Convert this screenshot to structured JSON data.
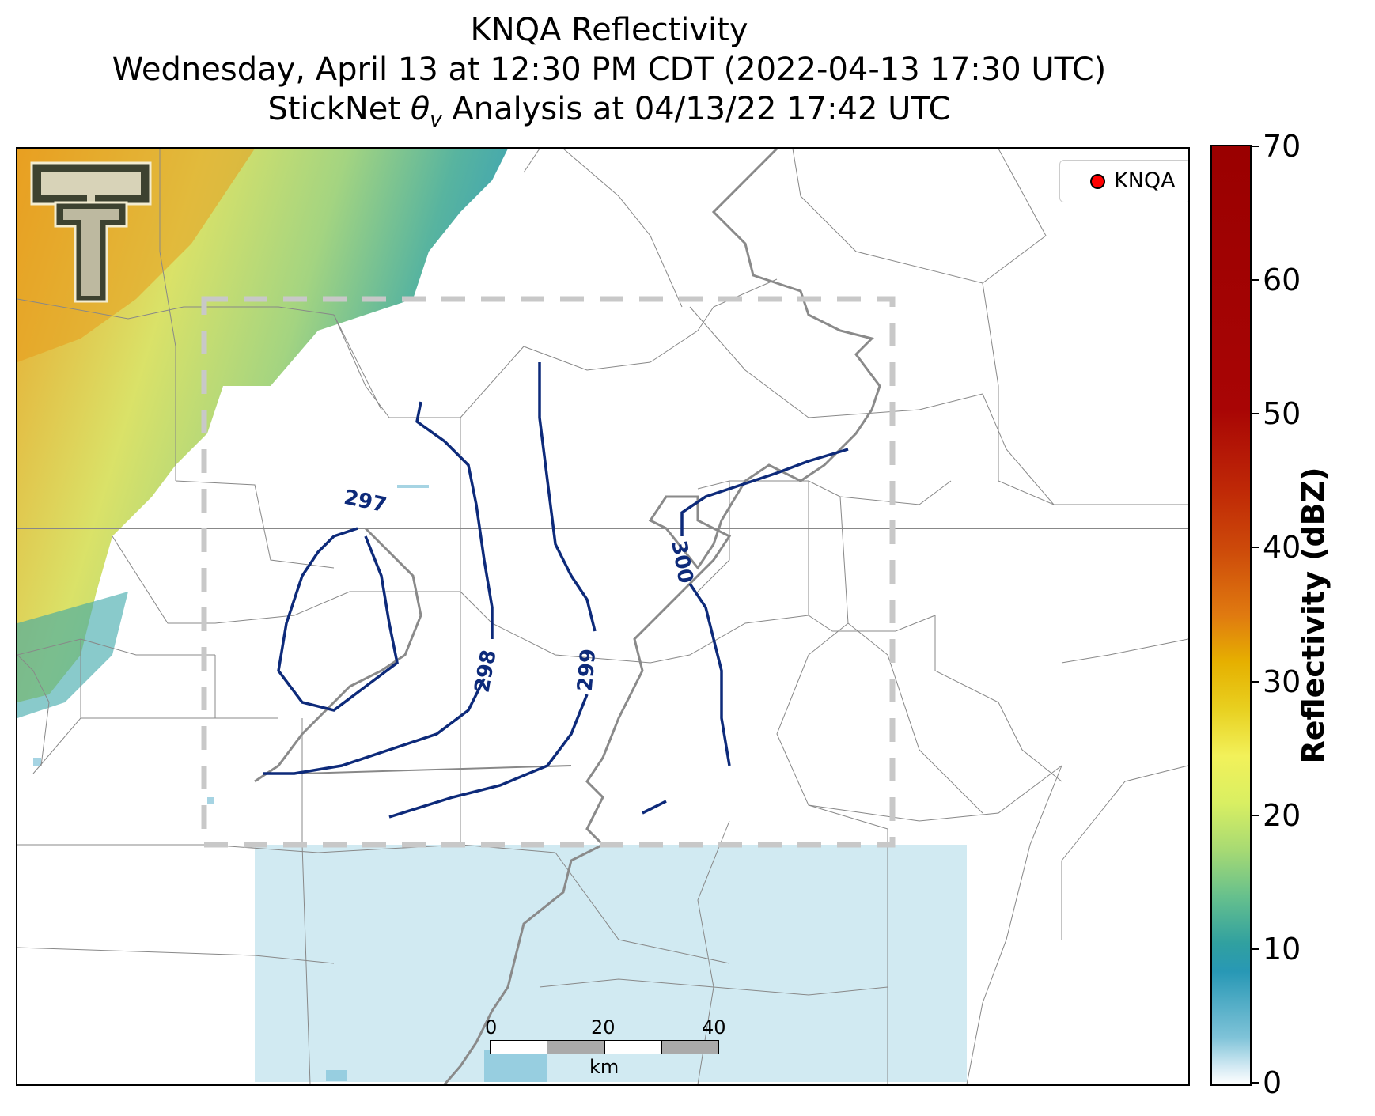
{
  "titles": {
    "line1": "KNQA Reflectivity",
    "line2": "Wednesday, April 13 at 12:30 PM CDT (2022-04-13 17:30 UTC)",
    "line3_prefix": "StickNet ",
    "line3_symbol": "θ",
    "line3_subscript": "v",
    "line3_suffix": " Analysis at 04/13/22 17:42 UTC"
  },
  "legend": {
    "label": "KNQA",
    "marker_color": "#ff0000"
  },
  "colorbar": {
    "label": "Reflectivity (dBZ)",
    "min": 0,
    "max": 70,
    "ticks": [
      "0",
      "10",
      "20",
      "30",
      "40",
      "50",
      "60",
      "70"
    ]
  },
  "contours": {
    "color": "#0d2a7a",
    "labels": [
      "297",
      "298",
      "299",
      "300"
    ]
  },
  "scalebar": {
    "ticks": [
      "0",
      "20",
      "40"
    ],
    "unit": "km"
  },
  "logo": {
    "name": "texas-tech-double-t-logo",
    "colors": [
      "#3d4230",
      "#f3ecd0"
    ]
  }
}
